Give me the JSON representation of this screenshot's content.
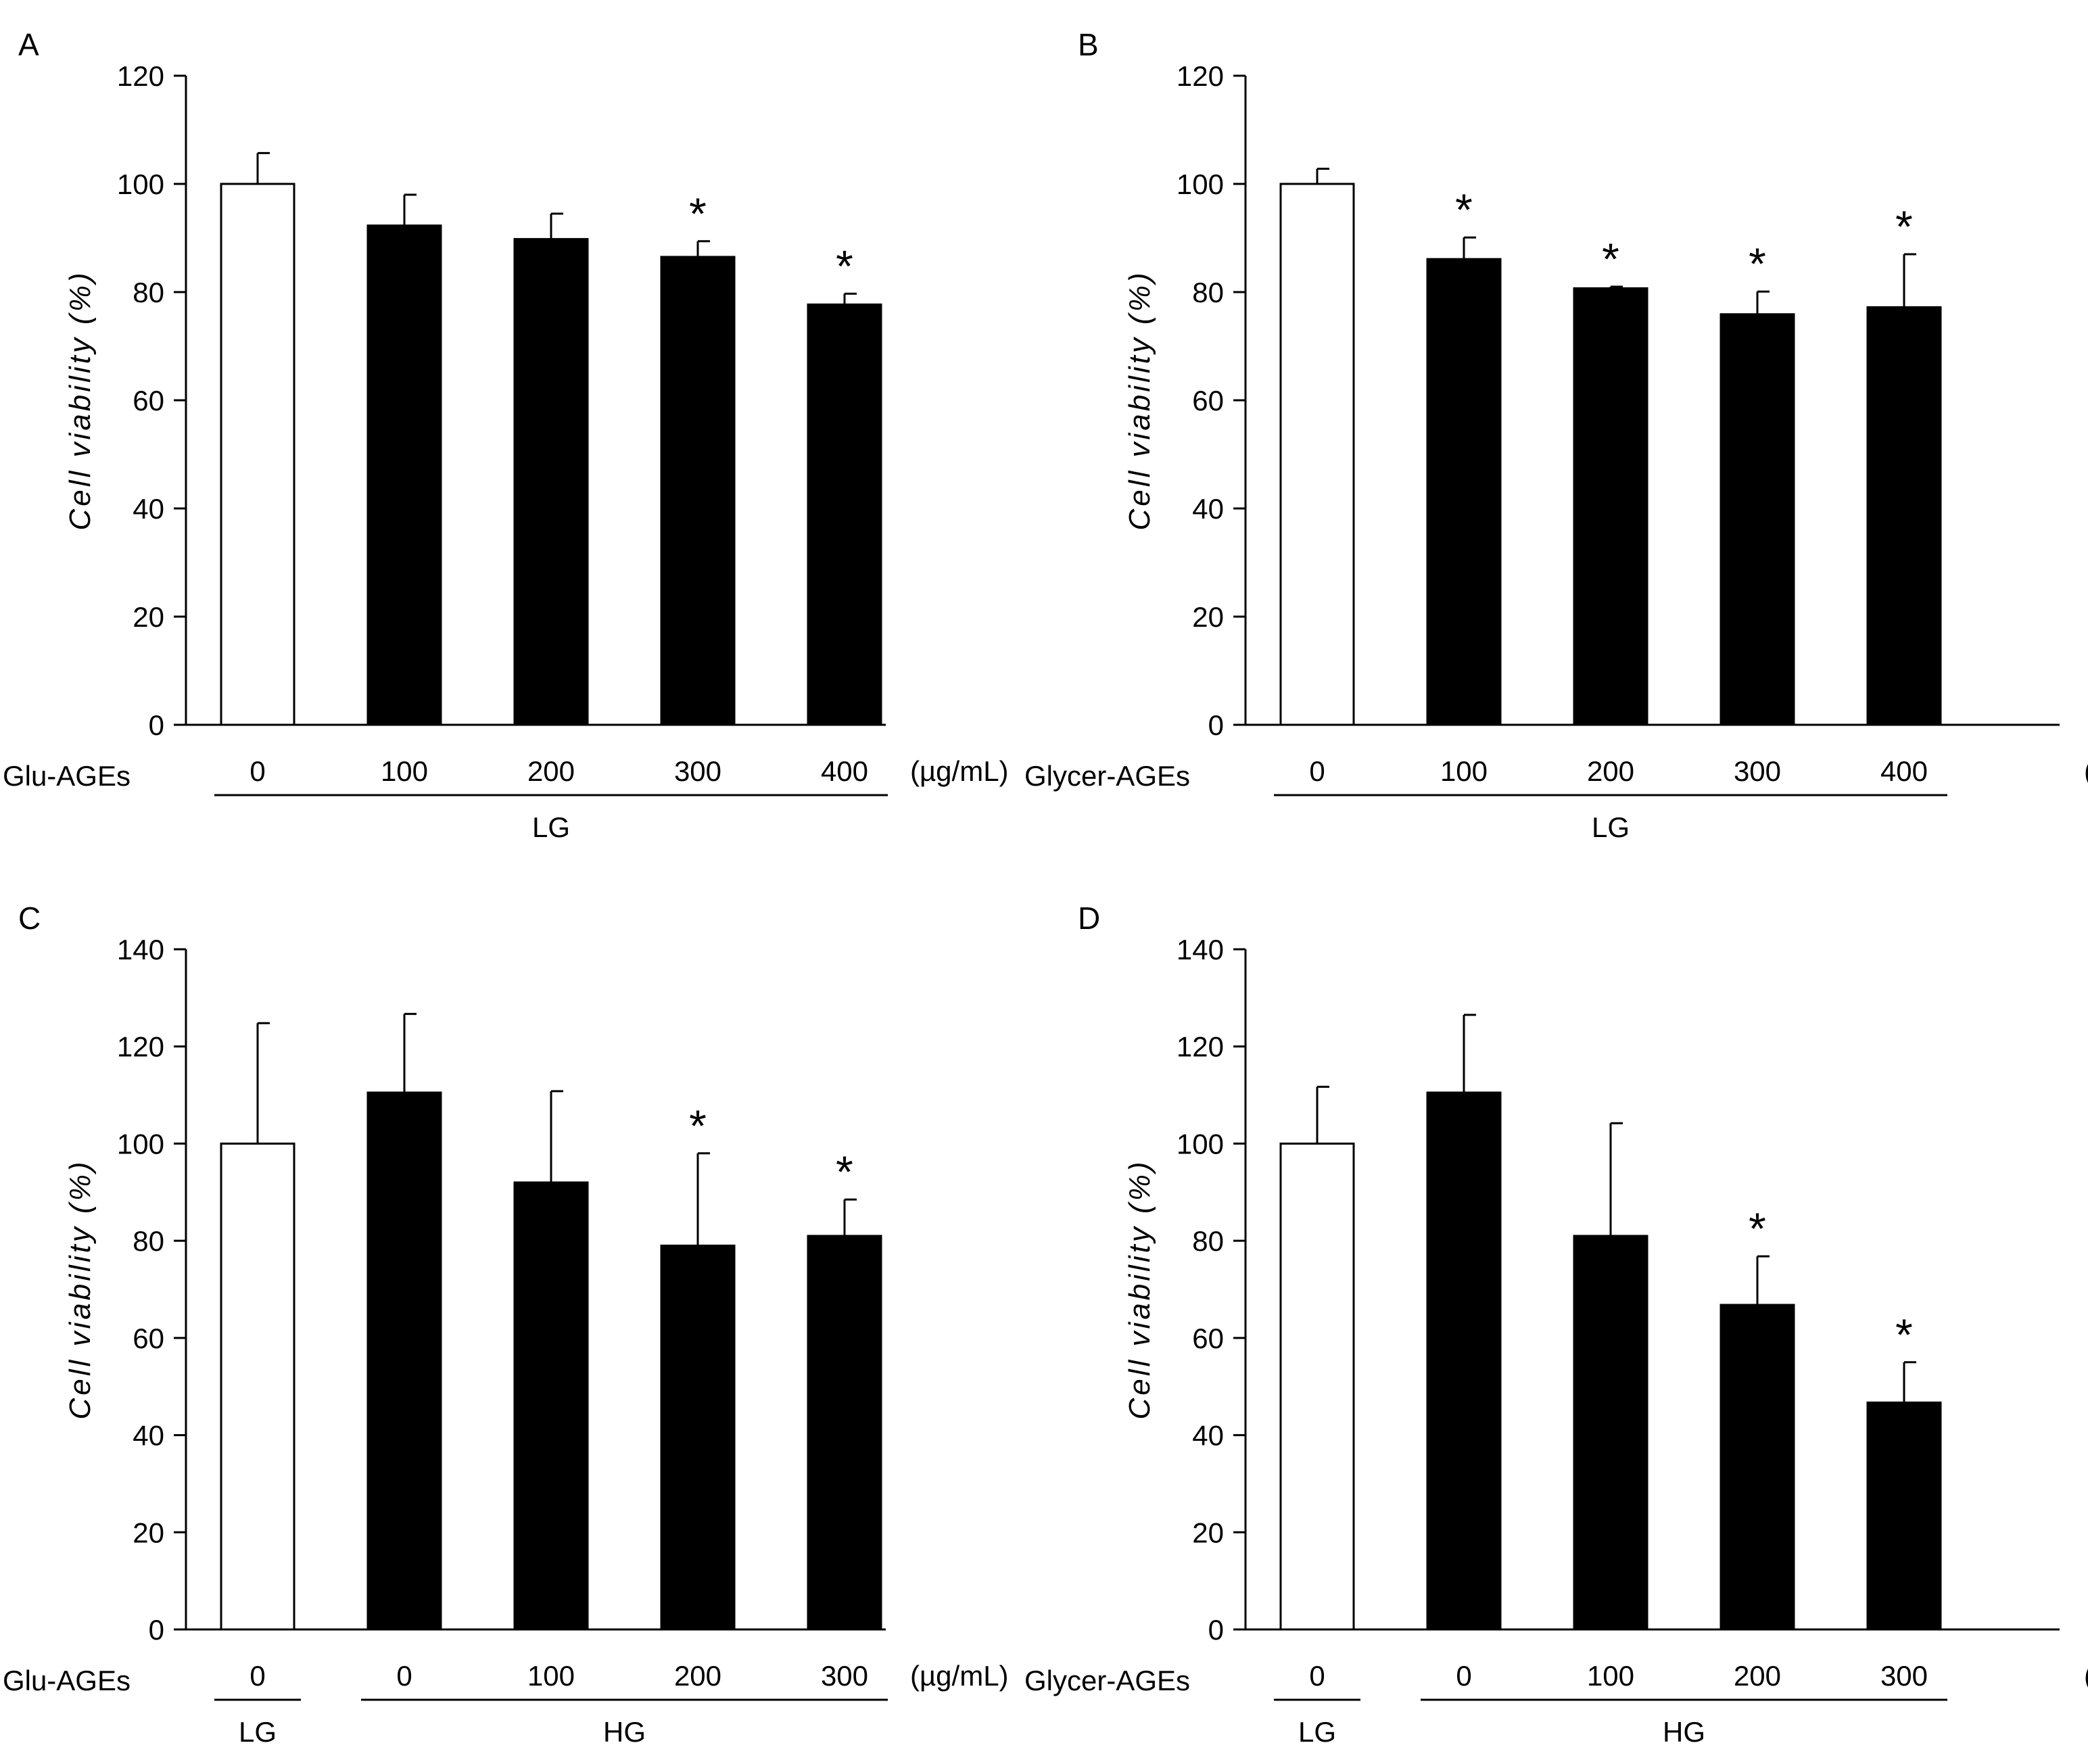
{
  "chart_data": [
    {
      "panel_label": "A",
      "type": "bar",
      "ylabel": "Cell viability (%)",
      "ylim": [
        0,
        120
      ],
      "yticks": [
        0,
        20,
        40,
        60,
        80,
        100,
        120
      ],
      "treatment_label": "Glu-AGEs",
      "unit_label": "(µg/mL)",
      "categories": [
        "0",
        "100",
        "200",
        "300",
        "400"
      ],
      "values": [
        100,
        92.3,
        89.8,
        86.5,
        77.7
      ],
      "errors": [
        5.7,
        5.7,
        4.7,
        2.9,
        2.0
      ],
      "bar_fill": [
        "#ffffff",
        "#000000",
        "#000000",
        "#000000",
        "#000000"
      ],
      "significance": [
        "",
        "",
        "",
        "*",
        "*"
      ],
      "groups": [
        {
          "label": "LG",
          "start": 0,
          "end": 4
        }
      ]
    },
    {
      "panel_label": "B",
      "type": "bar",
      "ylabel": "Cell viability (%)",
      "ylim": [
        0,
        120
      ],
      "yticks": [
        0,
        20,
        40,
        60,
        80,
        100,
        120
      ],
      "treatment_label": "Glycer-AGEs",
      "unit_label": "(µg/mL)",
      "categories": [
        "0",
        "100",
        "200",
        "300",
        "400"
      ],
      "values": [
        100,
        86.1,
        80.7,
        75.9,
        77.2
      ],
      "errors": [
        2.8,
        4.0,
        0.3,
        4.2,
        9.8
      ],
      "bar_fill": [
        "#ffffff",
        "#000000",
        "#000000",
        "#000000",
        "#000000"
      ],
      "significance": [
        "",
        "*",
        "*",
        "*",
        "*"
      ],
      "groups": [
        {
          "label": "LG",
          "start": 0,
          "end": 4
        }
      ]
    },
    {
      "panel_label": "C",
      "type": "bar",
      "ylabel": "Cell viability (%)",
      "ylim": [
        0,
        140
      ],
      "yticks": [
        0,
        20,
        40,
        60,
        80,
        100,
        120,
        140
      ],
      "treatment_label": "Glu-AGEs",
      "unit_label": "(µg/mL)",
      "categories": [
        "0",
        "0",
        "100",
        "200",
        "300"
      ],
      "values": [
        100,
        110.5,
        92.0,
        79.0,
        81.0
      ],
      "errors": [
        24.8,
        16.2,
        18.8,
        19.0,
        7.5
      ],
      "bar_fill": [
        "#ffffff",
        "#000000",
        "#000000",
        "#000000",
        "#000000"
      ],
      "significance": [
        "",
        "",
        "",
        "*",
        "*"
      ],
      "groups": [
        {
          "label": "LG",
          "start": 0,
          "end": 0
        },
        {
          "label": "HG",
          "start": 1,
          "end": 4
        }
      ]
    },
    {
      "panel_label": "D",
      "type": "bar",
      "ylabel": "Cell viability (%)",
      "ylim": [
        0,
        140
      ],
      "yticks": [
        0,
        20,
        40,
        60,
        80,
        100,
        120,
        140
      ],
      "treatment_label": "Glycer-AGEs",
      "unit_label": "(µg/mL)",
      "categories": [
        "0",
        "0",
        "100",
        "200",
        "300"
      ],
      "values": [
        100,
        110.5,
        81.0,
        66.8,
        46.7
      ],
      "errors": [
        11.7,
        16.0,
        23.2,
        10.0,
        8.3
      ],
      "bar_fill": [
        "#ffffff",
        "#000000",
        "#000000",
        "#000000",
        "#000000"
      ],
      "significance": [
        "",
        "",
        "",
        "*",
        "*"
      ],
      "groups": [
        {
          "label": "LG",
          "start": 0,
          "end": 0
        },
        {
          "label": "HG",
          "start": 1,
          "end": 4
        }
      ]
    }
  ]
}
